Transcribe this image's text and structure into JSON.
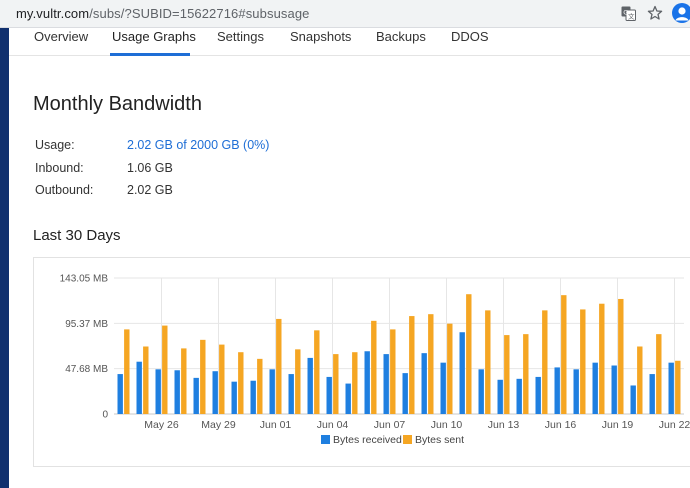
{
  "browser": {
    "url_host": "my.vultr.com",
    "url_path": "/subs/?SUBID=15622716#subsusage"
  },
  "tabs": [
    {
      "label": "Overview"
    },
    {
      "label": "Usage Graphs",
      "active": true
    },
    {
      "label": "Settings"
    },
    {
      "label": "Snapshots"
    },
    {
      "label": "Backups"
    },
    {
      "label": "DDOS"
    }
  ],
  "bandwidth": {
    "title": "Monthly Bandwidth",
    "usage_label": "Usage:",
    "usage_value": "2.02 GB of 2000 GB (0%)",
    "inbound_label": "Inbound:",
    "inbound_value": "1.06 GB",
    "outbound_label": "Outbound:",
    "outbound_value": "2.02 GB"
  },
  "last30": {
    "title": "Last 30 Days"
  },
  "colors": {
    "accent": "#1e6ed6",
    "received": "#1f7fe0",
    "sent": "#f5a623"
  },
  "chart_data": {
    "type": "bar",
    "ylim": [
      0,
      143.05
    ],
    "ytick_values": [
      0,
      47.68,
      95.37,
      143.05
    ],
    "ytick_labels": [
      "0",
      "47.68 MB",
      "95.37 MB",
      "143.05 MB"
    ],
    "xtick_labels": [
      "May 26",
      "May 29",
      "Jun 01",
      "Jun 04",
      "Jun 07",
      "Jun 10",
      "Jun 13",
      "Jun 16",
      "Jun 19",
      "Jun 22"
    ],
    "xtick_indices": [
      2,
      5,
      8,
      11,
      14,
      17,
      20,
      23,
      26,
      29
    ],
    "grid": true,
    "legend_position": "bottom",
    "series": [
      {
        "name": "Bytes received",
        "values": [
          42,
          55,
          47,
          46,
          38,
          45,
          34,
          35,
          47,
          42,
          59,
          39,
          32,
          66,
          63,
          43,
          64,
          54,
          86,
          47,
          36,
          37,
          39,
          49,
          47,
          54,
          51,
          30,
          42,
          54
        ]
      },
      {
        "name": "Bytes sent",
        "values": [
          89,
          71,
          93,
          69,
          78,
          73,
          65,
          58,
          100,
          68,
          88,
          63,
          65,
          98,
          89,
          103,
          105,
          95,
          126,
          109,
          83,
          84,
          109,
          125,
          110,
          116,
          121,
          71,
          84,
          56
        ]
      }
    ]
  }
}
